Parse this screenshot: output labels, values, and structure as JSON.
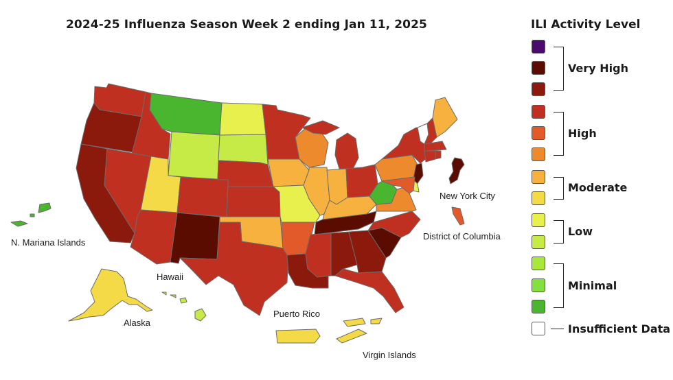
{
  "title": "2024-25 Influenza Season Week 2 ending Jan 11, 2025",
  "legend": {
    "title": "ILI Activity Level",
    "swatches": [
      "#4b0a6e",
      "#5a0c00",
      "#8b1a0d",
      "#c03020",
      "#e2592a",
      "#ee8a2e",
      "#f6b13e",
      "#f4da47",
      "#e8f04e",
      "#c6ea46",
      "#a8e83c",
      "#84e03e",
      "#4ab52e"
    ],
    "groups": [
      "Very High",
      "High",
      "Moderate",
      "Low",
      "Minimal"
    ],
    "insufficient": "Insufficient Data",
    "insufficient_color": "#ffffff"
  },
  "labels": {
    "nmi": "N. Mariana Islands",
    "hawaii": "Hawaii",
    "alaska": "Alaska",
    "puerto_rico": "Puerto Rico",
    "virgin_islands": "Virgin Islands",
    "nyc": "New York City",
    "dc": "District of Columbia"
  },
  "map": {
    "colors": {
      "WA": "#c03020",
      "OR": "#8b1a0d",
      "CA": "#8b1a0d",
      "ID": "#c03020",
      "NV": "#c03020",
      "MT": "#4ab52e",
      "WY": "#c6ea46",
      "UT": "#f4da47",
      "AZ": "#c03020",
      "CO": "#c03020",
      "NM": "#5a0c00",
      "ND": "#e8f04e",
      "SD": "#c6ea46",
      "NE": "#c03020",
      "KS": "#c03020",
      "OK": "#f6b13e",
      "TX": "#c03020",
      "MN": "#c03020",
      "IA": "#f6b13e",
      "MO": "#e8f04e",
      "AR": "#e2592a",
      "LA": "#8b1a0d",
      "WI": "#ee8a2e",
      "IL": "#f6b13e",
      "IN": "#f6b13e",
      "MI": "#c03020",
      "OH": "#c03020",
      "KY": "#f6b13e",
      "TN": "#5a0c00",
      "MS": "#c03020",
      "AL": "#8b1a0d",
      "GA": "#8b1a0d",
      "FL": "#c03020",
      "SC": "#5a0c00",
      "NC": "#c03020",
      "VA": "#ee8a2e",
      "WV": "#4ab52e",
      "PA": "#ee8a2e",
      "NY": "#c03020",
      "VT": "#ffffff",
      "NH": "#c03020",
      "ME": "#f6b13e",
      "MA": "#c03020",
      "CT": "#c03020",
      "RI": "#c03020",
      "NJ": "#5a0c00",
      "DE": "#e8f04e",
      "MD": "#e2592a",
      "NYC": "#5a0c00",
      "DC": "#e2592a",
      "AK": "#f4da47",
      "HI": "#c6ea46",
      "PR": "#f4da47",
      "VI": "#f4da47",
      "NMI": "#4ab52e"
    }
  }
}
